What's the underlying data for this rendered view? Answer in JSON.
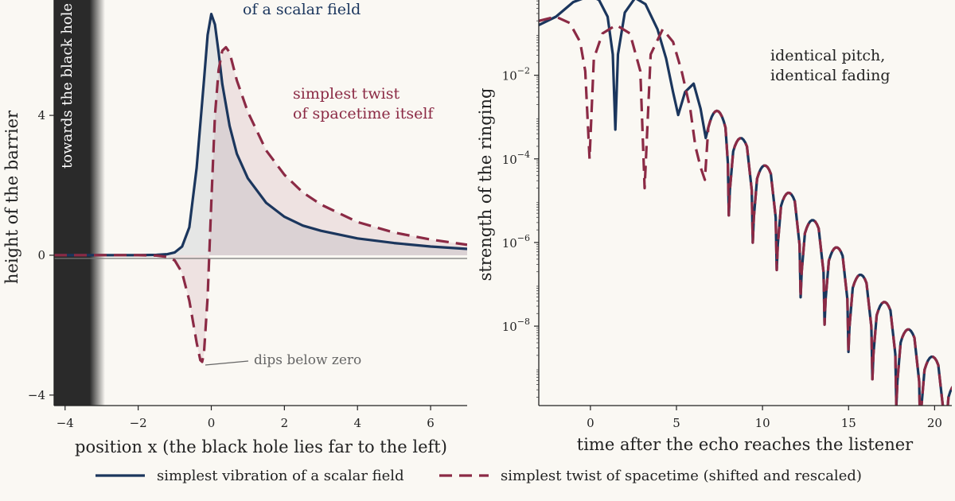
{
  "colors": {
    "scalar": "#1b365d",
    "grav": "#8b2a45",
    "background": "#faf8f3",
    "horizon_band": "#2a2a2a",
    "note_gray": "#666666"
  },
  "chart_data": [
    {
      "type": "line",
      "xlabel": "position x (the black hole lies far to the left)",
      "ylabel": "height of the barrier",
      "xlim": [
        -4.3,
        7
      ],
      "ylim": [
        -4.3,
        7.3
      ],
      "xticks": [
        -4,
        -2,
        0,
        2,
        4,
        6
      ],
      "xtick_labels": [
        "−4",
        "−2",
        "0",
        "2",
        "4",
        "6"
      ],
      "yticks": [
        -4,
        0,
        4
      ],
      "ytick_labels": [
        "−4",
        "0",
        "4"
      ],
      "grid": false,
      "horizon_label": "towards the black hole",
      "series": [
        {
          "name": "simplest vibration of a scalar field",
          "style": "solid",
          "x": [
            -4.3,
            -2,
            -1.5,
            -1.2,
            -1.0,
            -0.8,
            -0.6,
            -0.4,
            -0.2,
            -0.1,
            0,
            0.1,
            0.2,
            0.3,
            0.5,
            0.7,
            1.0,
            1.5,
            2.0,
            2.5,
            3.0,
            4.0,
            5.0,
            6.0,
            7.0
          ],
          "y": [
            0,
            0,
            0.01,
            0.03,
            0.08,
            0.25,
            0.8,
            2.5,
            5.0,
            6.3,
            6.9,
            6.6,
            5.8,
            4.9,
            3.7,
            2.9,
            2.2,
            1.5,
            1.1,
            0.85,
            0.7,
            0.48,
            0.35,
            0.25,
            0.18
          ]
        },
        {
          "name": "simplest twist of spacetime (shifted and rescaled)",
          "style": "dashed",
          "x": [
            -4.3,
            -2,
            -1.5,
            -1.2,
            -1.0,
            -0.8,
            -0.6,
            -0.4,
            -0.3,
            -0.25,
            -0.2,
            -0.1,
            0,
            0.1,
            0.2,
            0.3,
            0.4,
            0.5,
            0.7,
            1.0,
            1.5,
            2.0,
            2.5,
            3.0,
            4.0,
            5.0,
            6.0,
            7.0
          ],
          "y": [
            0,
            0,
            -0.01,
            -0.05,
            -0.15,
            -0.5,
            -1.3,
            -2.5,
            -3.0,
            -3.05,
            -2.8,
            -1.2,
            1.5,
            4.0,
            5.3,
            5.85,
            5.95,
            5.8,
            5.0,
            4.1,
            3.0,
            2.3,
            1.8,
            1.45,
            0.95,
            0.65,
            0.45,
            0.3
          ]
        }
      ],
      "annotations": [
        {
          "text": "of a scalar field",
          "series": 0
        },
        {
          "text": "simplest twist",
          "series": 1
        },
        {
          "text": "of spacetime itself",
          "series": 1
        },
        {
          "text": "dips below zero",
          "at": [
            -0.3,
            -3.05
          ]
        }
      ]
    },
    {
      "type": "line",
      "xlabel": "time after the echo reaches the listener",
      "ylabel": "strength of the ringing",
      "yscale": "log",
      "xlim": [
        -3,
        21
      ],
      "ylim_log10": [
        -9.9,
        -0.2
      ],
      "xticks": [
        0,
        5,
        10,
        15,
        20
      ],
      "yticks_log10": [
        -8,
        -6,
        -4,
        -2
      ],
      "grid": false,
      "annotation_lines": [
        "identical pitch,",
        "identical fading"
      ],
      "series": [
        {
          "name": "simplest vibration of a scalar field",
          "style": "solid",
          "x": [
            -3,
            -2,
            -1,
            0,
            0.5,
            1.0,
            1.3,
            1.45,
            1.6,
            2.0,
            2.6,
            3.2,
            3.9,
            4.4,
            4.8,
            5.1,
            5.5,
            6.0,
            6.4,
            6.7
          ],
          "log10y": [
            -0.8,
            -0.6,
            -0.25,
            -0.1,
            -0.2,
            -0.6,
            -1.5,
            -3.3,
            -1.5,
            -0.5,
            -0.15,
            -0.3,
            -0.9,
            -1.6,
            -2.4,
            -2.95,
            -2.4,
            -2.2,
            -2.8,
            -3.5
          ]
        },
        {
          "name": "simplest twist of spacetime (shifted and rescaled)",
          "style": "dashed",
          "x": [
            -3,
            -2,
            -1.2,
            -0.6,
            -0.3,
            -0.05,
            0.2,
            0.7,
            1.5,
            2.3,
            2.9,
            3.15,
            3.5,
            4.2,
            4.8,
            5.3,
            5.8,
            6.1,
            6.4,
            6.65
          ],
          "log10y": [
            -0.7,
            -0.6,
            -0.75,
            -1.2,
            -1.9,
            -4.0,
            -1.6,
            -1.0,
            -0.8,
            -1.0,
            -1.9,
            -4.7,
            -1.5,
            -0.9,
            -1.2,
            -1.9,
            -2.8,
            -3.7,
            -4.2,
            -4.5
          ]
        }
      ],
      "common_tail": {
        "first_peak": {
          "t": 7.35,
          "log10y": -2.85
        },
        "period": 1.39,
        "node_depth": 2.5,
        "decay_per_unit": 0.47,
        "end_t": 21
      }
    }
  ],
  "legend": [
    {
      "label": "simplest vibration of a scalar field",
      "style": "solid",
      "series": 0
    },
    {
      "label": "simplest twist of spacetime (shifted and rescaled)",
      "style": "dashed",
      "series": 1
    }
  ]
}
